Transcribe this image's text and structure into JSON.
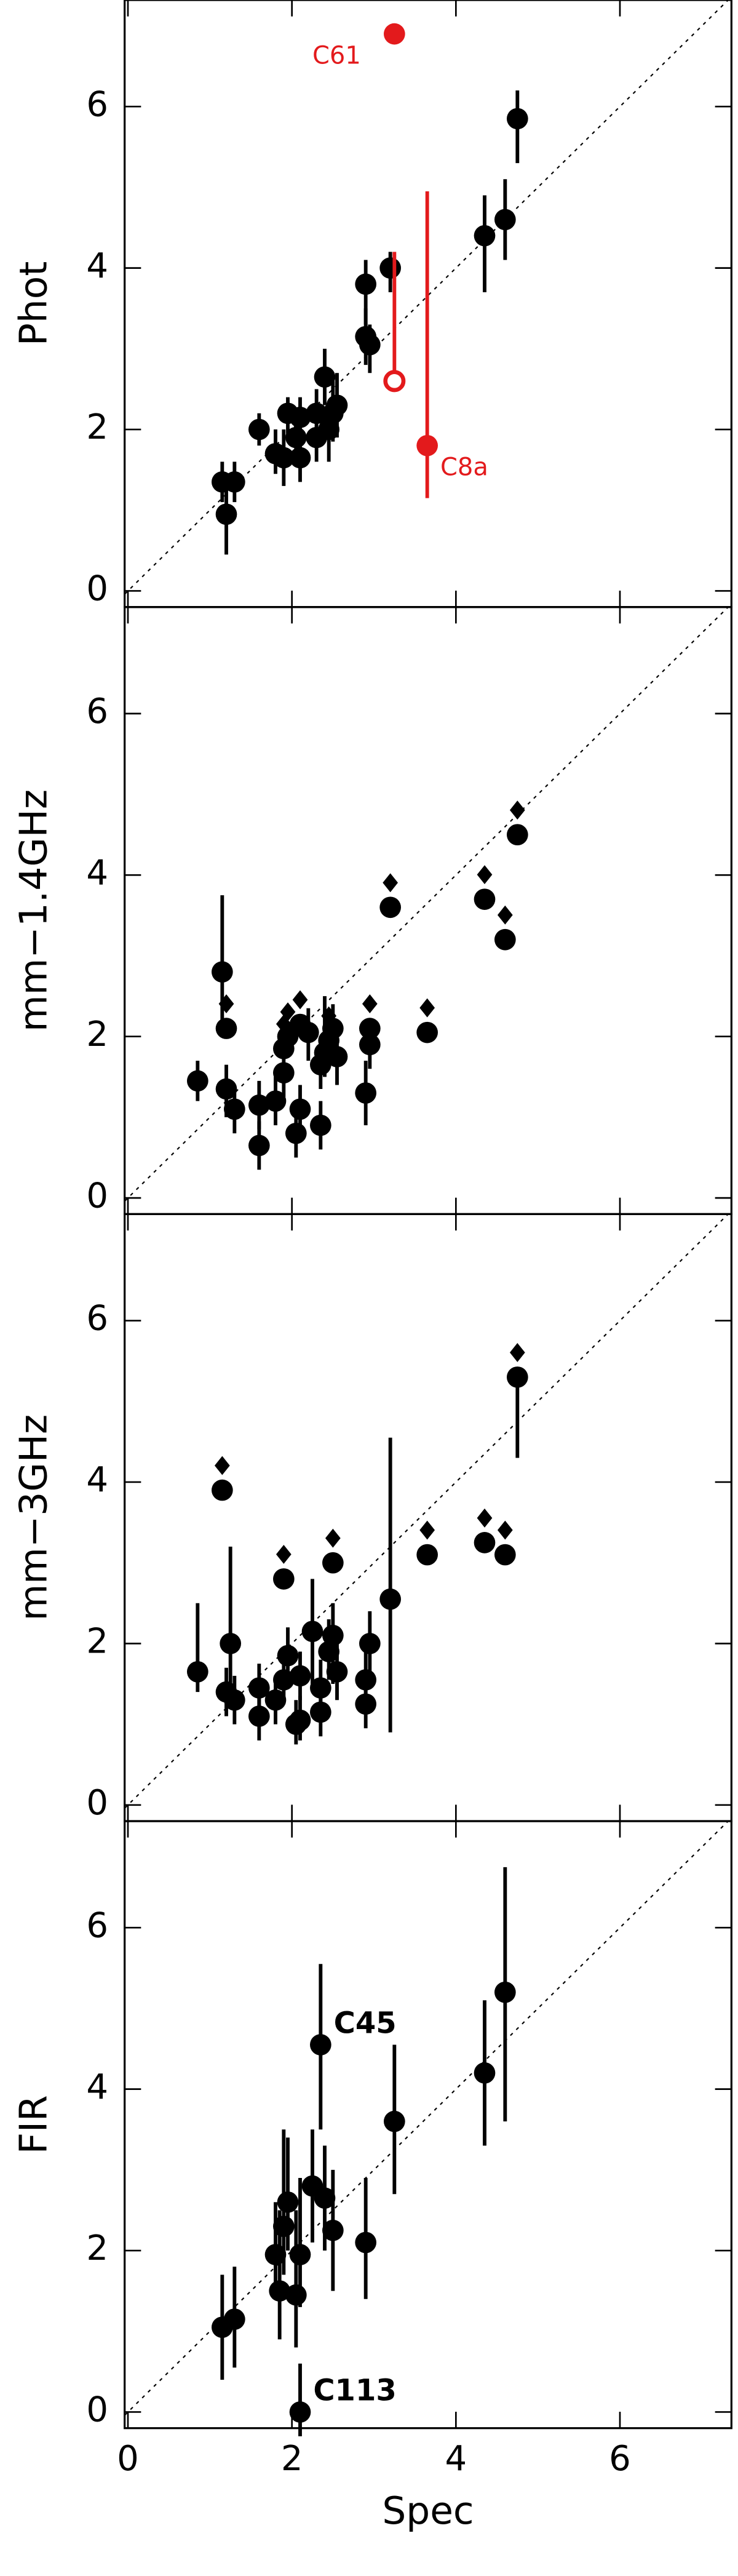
{
  "chart_data": [
    {
      "type": "scatter",
      "ylabel": "Phot",
      "xlim": [
        -0.04,
        7.36
      ],
      "ylim": [
        -0.2,
        7.32
      ],
      "xticks": [
        0,
        2,
        4,
        6
      ],
      "yticks": [
        0,
        2,
        4,
        6
      ],
      "diagonal": true,
      "show_xtick_labels": false,
      "series": [
        {
          "color": "#000000",
          "marker": "filled",
          "lower_limit": false,
          "x": [
            1.15,
            1.3,
            1.2,
            1.6,
            1.8,
            1.9,
            1.95,
            2.05,
            2.1,
            2.1,
            2.3,
            2.3,
            2.4,
            2.45,
            2.5,
            2.55,
            2.9,
            2.9,
            2.95,
            3.2,
            4.35,
            4.6,
            4.75
          ],
          "values": [
            1.35,
            1.35,
            0.95,
            2.0,
            1.7,
            1.65,
            2.2,
            1.9,
            1.65,
            2.15,
            1.9,
            2.2,
            2.65,
            2.0,
            2.2,
            2.3,
            3.15,
            3.8,
            3.05,
            4.0,
            4.4,
            4.6,
            5.85
          ],
          "err_low": [
            1.1,
            1.1,
            0.45,
            1.8,
            1.45,
            1.3,
            1.95,
            1.6,
            1.35,
            1.9,
            1.6,
            1.95,
            2.3,
            1.6,
            1.85,
            1.9,
            2.8,
            3.3,
            2.7,
            3.7,
            3.7,
            4.1,
            5.3
          ],
          "err_high": [
            1.6,
            1.6,
            1.35,
            2.2,
            2.0,
            2.0,
            2.4,
            2.2,
            2.0,
            2.4,
            2.2,
            2.5,
            3.0,
            2.3,
            2.6,
            2.7,
            3.5,
            4.1,
            3.3,
            4.2,
            4.9,
            5.1,
            6.2
          ],
          "labels": [
            null,
            null,
            null,
            null,
            null,
            null,
            null,
            null,
            null,
            null,
            null,
            null,
            null,
            null,
            null,
            null,
            null,
            null,
            null,
            null,
            null,
            null,
            null
          ]
        },
        {
          "color": "#e31a1c",
          "marker": "filled",
          "lower_limit": false,
          "x": [
            3.25,
            3.65
          ],
          "values": [
            6.9,
            1.8
          ],
          "err_low": [
            null,
            1.15
          ],
          "err_high": [
            null,
            4.95
          ],
          "labels": [
            "C61",
            "C8a"
          ]
        },
        {
          "color": "#e31a1c",
          "marker": "open",
          "lower_limit": false,
          "x": [
            3.25
          ],
          "values": [
            2.6
          ],
          "err_low": [
            2.5
          ],
          "err_high": [
            4.2
          ],
          "labels": [
            null
          ]
        }
      ]
    },
    {
      "type": "scatter",
      "ylabel": "mm−1.4GHz",
      "xlim": [
        -0.04,
        7.36
      ],
      "ylim": [
        -0.2,
        7.32
      ],
      "xticks": [
        0,
        2,
        4,
        6
      ],
      "yticks": [
        0,
        2,
        4,
        6
      ],
      "diagonal": true,
      "show_xtick_labels": false,
      "series": [
        {
          "color": "#000000",
          "marker": "filled",
          "lower_limit": false,
          "x": [
            0.85,
            1.15,
            1.2,
            1.3,
            1.6,
            1.6,
            1.8,
            1.9,
            2.05,
            2.1,
            2.2,
            2.35,
            2.35,
            2.4,
            2.5,
            2.55,
            2.9,
            2.95
          ],
          "values": [
            1.45,
            2.8,
            1.35,
            1.1,
            0.65,
            1.15,
            1.2,
            1.55,
            0.8,
            1.1,
            2.05,
            0.9,
            1.65,
            1.8,
            2.1,
            1.75,
            1.3,
            1.9
          ],
          "err_low": [
            1.2,
            2.1,
            1.0,
            0.8,
            0.35,
            0.85,
            0.9,
            1.25,
            0.5,
            0.8,
            1.7,
            0.6,
            1.35,
            1.5,
            1.8,
            1.4,
            0.9,
            1.6
          ],
          "err_high": [
            1.7,
            3.75,
            1.65,
            1.4,
            0.95,
            1.45,
            1.5,
            1.85,
            1.1,
            1.4,
            2.35,
            1.2,
            1.95,
            2.5,
            2.4,
            2.05,
            1.7,
            2.2
          ],
          "labels": [
            null,
            null,
            null,
            null,
            null,
            null,
            null,
            null,
            null,
            null,
            null,
            null,
            null,
            null,
            null,
            null,
            null,
            null
          ]
        },
        {
          "color": "#000000",
          "marker": "filled",
          "lower_limit": true,
          "x": [
            1.2,
            1.9,
            1.95,
            2.1,
            2.45,
            2.95,
            3.2,
            3.65,
            4.35,
            4.6,
            4.75
          ],
          "values": [
            2.1,
            1.85,
            2.0,
            2.15,
            1.95,
            2.1,
            3.6,
            2.05,
            3.7,
            3.2,
            4.5
          ],
          "err_low": [
            null,
            null,
            null,
            null,
            null,
            null,
            null,
            null,
            null,
            null,
            null
          ],
          "err_high": [
            null,
            null,
            null,
            null,
            null,
            null,
            null,
            null,
            null,
            null,
            null
          ],
          "labels": [
            null,
            null,
            null,
            null,
            null,
            null,
            null,
            null,
            null,
            null,
            null
          ]
        }
      ]
    },
    {
      "type": "scatter",
      "ylabel": "mm−3GHz",
      "xlim": [
        -0.04,
        7.36
      ],
      "ylim": [
        -0.2,
        7.32
      ],
      "xticks": [
        0,
        2,
        4,
        6
      ],
      "yticks": [
        0,
        2,
        4,
        6
      ],
      "diagonal": true,
      "show_xtick_labels": false,
      "series": [
        {
          "color": "#000000",
          "marker": "filled",
          "lower_limit": false,
          "x": [
            0.85,
            1.2,
            1.25,
            1.3,
            1.6,
            1.6,
            1.8,
            1.9,
            1.95,
            2.05,
            2.1,
            2.1,
            2.25,
            2.35,
            2.35,
            2.45,
            2.5,
            2.55,
            2.9,
            2.9,
            2.95,
            3.2
          ],
          "values": [
            1.65,
            1.4,
            2.0,
            1.3,
            1.1,
            1.45,
            1.3,
            1.55,
            1.85,
            1.0,
            1.6,
            1.05,
            2.15,
            1.15,
            1.45,
            1.9,
            2.1,
            1.65,
            1.25,
            1.55,
            2.0,
            2.55
          ],
          "err_low": [
            1.4,
            1.1,
            1.2,
            1.0,
            0.8,
            1.15,
            1.0,
            1.25,
            1.5,
            0.75,
            1.3,
            0.8,
            1.5,
            0.85,
            1.1,
            1.55,
            1.5,
            1.3,
            0.95,
            1.2,
            1.6,
            0.9
          ],
          "err_high": [
            2.5,
            1.7,
            3.2,
            1.6,
            1.4,
            1.75,
            1.6,
            1.85,
            2.2,
            1.3,
            1.9,
            1.35,
            2.8,
            1.45,
            1.8,
            2.3,
            2.5,
            2.0,
            1.55,
            1.9,
            2.4,
            4.55
          ],
          "labels": [
            null,
            null,
            null,
            null,
            null,
            null,
            null,
            null,
            null,
            null,
            null,
            null,
            null,
            null,
            null,
            null,
            null,
            null,
            null,
            null,
            null,
            null
          ]
        },
        {
          "color": "#000000",
          "marker": "filled",
          "lower_limit": true,
          "x": [
            1.15,
            1.9,
            2.5,
            3.65,
            4.35,
            4.6,
            4.75
          ],
          "values": [
            3.9,
            2.8,
            3.0,
            3.1,
            3.25,
            3.1,
            5.3
          ],
          "err_low": [
            null,
            null,
            null,
            null,
            null,
            null,
            4.3
          ],
          "err_high": [
            null,
            null,
            null,
            null,
            null,
            null,
            null
          ],
          "labels": [
            null,
            null,
            null,
            null,
            null,
            null,
            null
          ]
        }
      ]
    },
    {
      "type": "scatter",
      "ylabel": "FIR",
      "xlabel": "Spec",
      "xlim": [
        -0.04,
        7.36
      ],
      "ylim": [
        -0.2,
        7.32
      ],
      "xticks": [
        0,
        2,
        4,
        6
      ],
      "yticks": [
        0,
        2,
        4,
        6
      ],
      "diagonal": true,
      "show_xtick_labels": true,
      "series": [
        {
          "color": "#000000",
          "marker": "filled",
          "lower_limit": false,
          "x": [
            1.15,
            1.3,
            1.8,
            1.85,
            1.9,
            1.95,
            2.05,
            2.1,
            2.25,
            2.35,
            2.4,
            2.5,
            2.9,
            3.25,
            4.35,
            4.6,
            2.1
          ],
          "values": [
            1.05,
            1.15,
            1.95,
            1.5,
            2.3,
            2.6,
            1.45,
            1.95,
            2.8,
            4.55,
            2.65,
            2.25,
            2.1,
            3.6,
            4.2,
            5.2,
            0.0
          ],
          "err_low": [
            0.4,
            0.55,
            1.4,
            0.9,
            1.7,
            2.0,
            0.8,
            1.3,
            2.1,
            3.5,
            2.0,
            1.5,
            1.4,
            2.7,
            3.3,
            3.6,
            -0.3
          ],
          "err_high": [
            1.7,
            1.8,
            2.6,
            2.5,
            3.5,
            3.4,
            2.5,
            2.9,
            3.5,
            5.55,
            3.3,
            3.0,
            2.9,
            4.55,
            5.1,
            6.75,
            0.6
          ],
          "labels": [
            null,
            null,
            null,
            null,
            null,
            null,
            null,
            null,
            null,
            "C45",
            null,
            null,
            null,
            null,
            null,
            null,
            "C113"
          ]
        }
      ]
    }
  ]
}
